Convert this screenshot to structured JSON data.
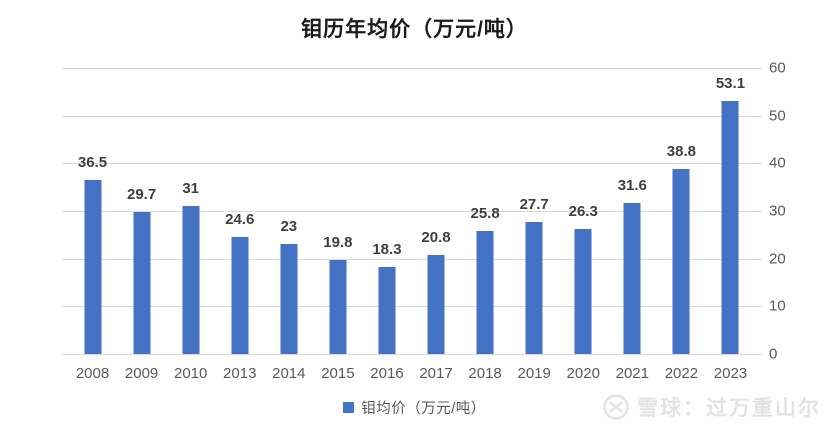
{
  "chart_data": {
    "type": "bar",
    "title": "钼历年均价（万元/吨）",
    "categories": [
      "2008",
      "2009",
      "2010",
      "2013",
      "2014",
      "2015",
      "2016",
      "2017",
      "2018",
      "2019",
      "2020",
      "2021",
      "2022",
      "2023"
    ],
    "values": [
      36.5,
      29.7,
      31,
      24.6,
      23,
      19.8,
      18.3,
      20.8,
      25.8,
      27.7,
      26.3,
      31.6,
      38.8,
      53.1
    ],
    "value_labels": [
      "36.5",
      "29.7",
      "31",
      "24.6",
      "23",
      "19.8",
      "18.3",
      "20.8",
      "25.8",
      "27.7",
      "26.3",
      "31.6",
      "38.8",
      "53.1"
    ],
    "series_name": "钼均价（万元/吨）",
    "xlabel": "",
    "ylabel": "",
    "ylim": [
      0,
      60
    ],
    "y_ticks": [
      0,
      10,
      20,
      30,
      40,
      50,
      60
    ],
    "y_axis_side": "right",
    "grid": true,
    "legend_position": "bottom",
    "data_labels_shown": true
  },
  "watermark": {
    "text": "雪球：过万重山尔",
    "icon": "xueqiu-logo"
  },
  "colors": {
    "bar": "#4472c4",
    "gridline": "#d9d9d9",
    "axis_text": "#595959",
    "data_label": "#3f3f3f",
    "title_text": "#1a1a1a",
    "watermark": "#e3e3e3"
  }
}
